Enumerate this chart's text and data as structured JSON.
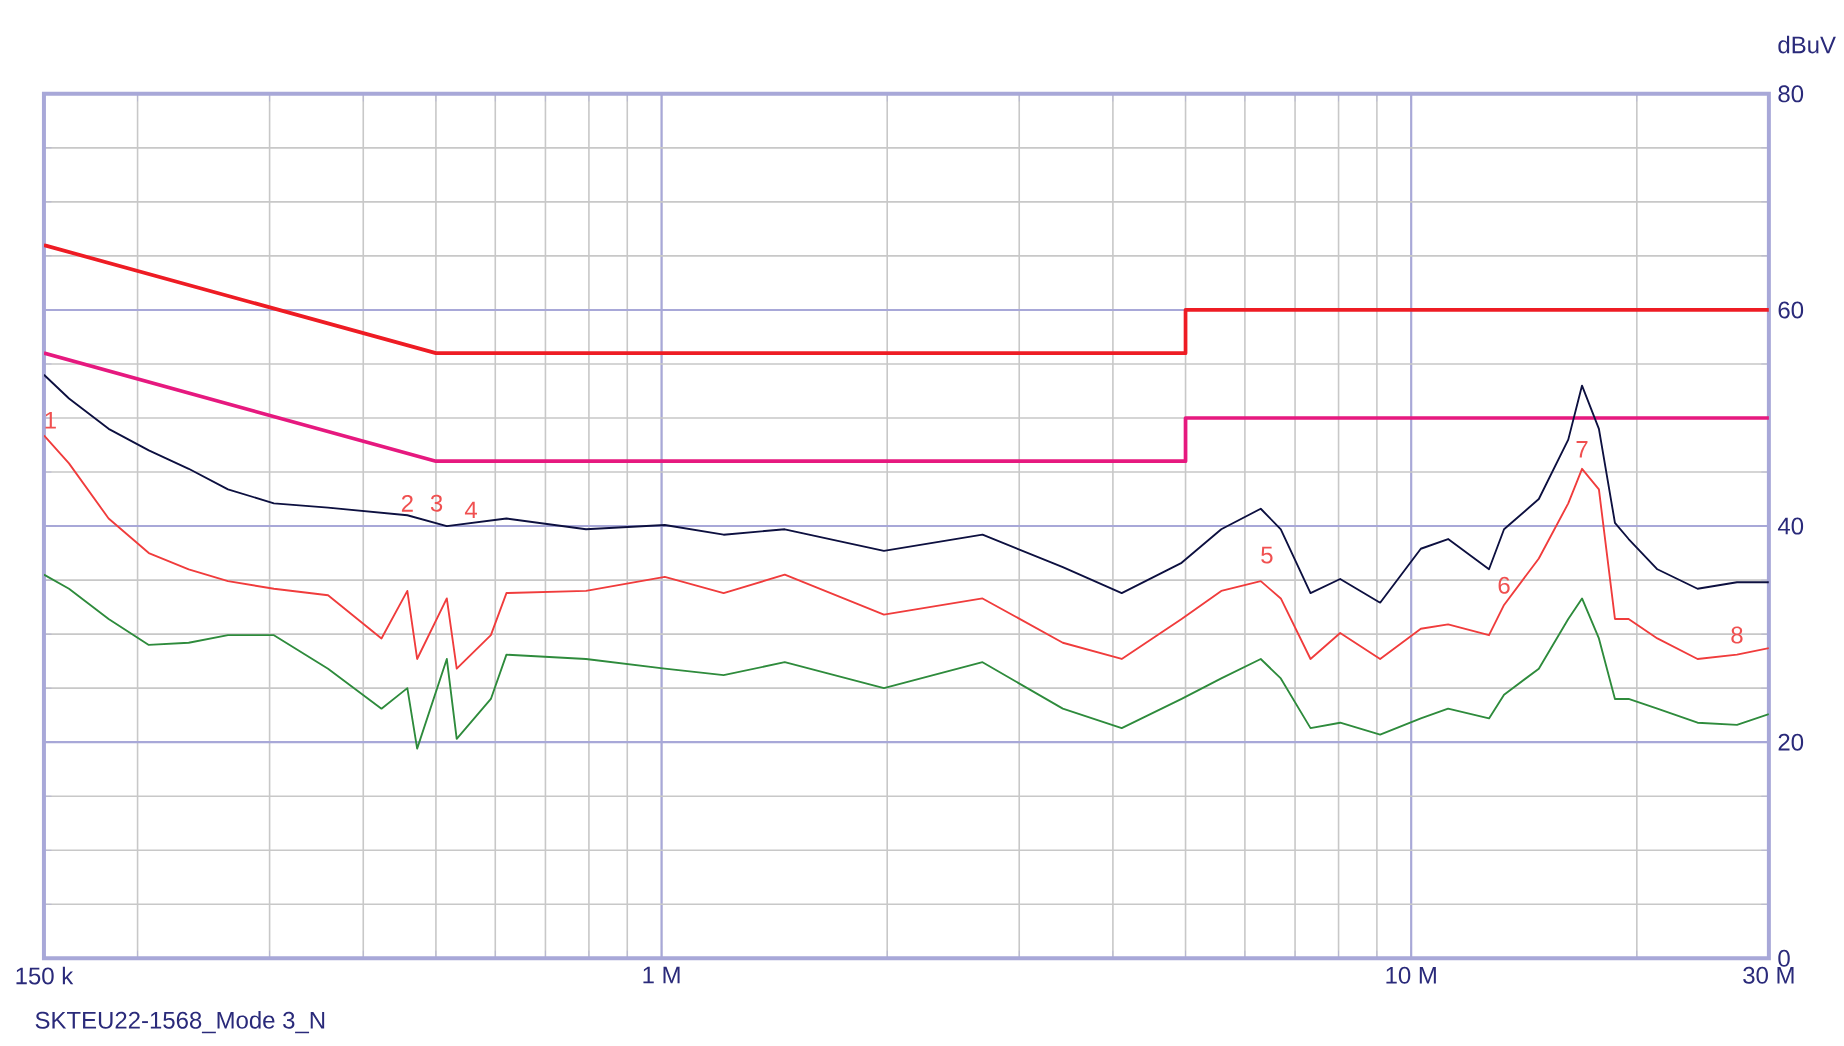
{
  "chart_data": {
    "type": "line",
    "ylabel": "dBuV",
    "log": "x",
    "grid": true,
    "xlim": [
      0.15,
      30
    ],
    "ylim": [
      0,
      80
    ],
    "xticks": [
      {
        "value": 0.15,
        "label": "150 k"
      },
      {
        "value": 1,
        "label": "1 M"
      },
      {
        "value": 10,
        "label": "10 M"
      },
      {
        "value": 30,
        "label": "30 M"
      }
    ],
    "yticks": [
      0,
      20,
      40,
      60,
      80
    ],
    "series": [
      {
        "color": "#ee1c24",
        "x": [
          0.15,
          0.5,
          5,
          5,
          30
        ],
        "values": [
          66,
          56,
          56,
          60,
          60
        ]
      },
      {
        "color": "#e6197f",
        "x": [
          0.15,
          0.5,
          5,
          5,
          30
        ],
        "values": [
          56,
          46,
          46,
          50,
          50
        ]
      },
      {
        "color": "#0d1040",
        "x": [
          0.15,
          0.162,
          0.183,
          0.207,
          0.234,
          0.264,
          0.304,
          0.359,
          0.458,
          0.517,
          0.621,
          0.793,
          1.01,
          1.21,
          1.46,
          1.98,
          2.68,
          3.43,
          4.11,
          4.94,
          5.58,
          6.3,
          6.7,
          7.34,
          8.04,
          9.09,
          10.3,
          11.2,
          12.7,
          13.3,
          14.8,
          16.2,
          16.9,
          17.8,
          18.7,
          19.5,
          21.3,
          24.1,
          27.2,
          30
        ],
        "values": [
          54,
          51.8,
          49,
          47,
          45.3,
          43.4,
          42.1,
          41.7,
          41,
          40,
          40.7,
          39.7,
          40.1,
          39.2,
          39.7,
          37.7,
          39.2,
          36.2,
          33.8,
          36.6,
          39.7,
          41.6,
          39.7,
          33.8,
          35.1,
          32.9,
          37.9,
          38.8,
          36,
          39.7,
          42.5,
          48,
          53,
          49,
          40.3,
          38.8,
          36,
          34.2,
          34.8,
          34.8
        ]
      },
      {
        "color": "#f03c3c",
        "x": [
          0.15,
          0.162,
          0.183,
          0.207,
          0.234,
          0.264,
          0.304,
          0.359,
          0.423,
          0.458,
          0.472,
          0.517,
          0.533,
          0.592,
          0.621,
          0.793,
          1.01,
          1.21,
          1.46,
          1.98,
          2.68,
          3.43,
          4.11,
          4.94,
          5.58,
          6.3,
          6.7,
          7.34,
          8.04,
          9.09,
          10.3,
          11.2,
          12.7,
          13.3,
          14.8,
          16.2,
          16.9,
          17.8,
          18.7,
          19.5,
          21.3,
          24.1,
          27.2,
          30
        ],
        "values": [
          48.4,
          45.8,
          40.7,
          37.5,
          36,
          34.9,
          34.2,
          33.6,
          29.6,
          34,
          27.7,
          33.3,
          26.8,
          29.9,
          33.8,
          34,
          35.3,
          33.8,
          35.5,
          31.8,
          33.3,
          29.2,
          27.7,
          31.4,
          34,
          34.9,
          33.3,
          27.7,
          30.1,
          27.7,
          30.5,
          30.9,
          29.9,
          32.7,
          37,
          42.1,
          45.3,
          43.4,
          31.4,
          31.4,
          29.6,
          27.7,
          28.1,
          28.7
        ]
      },
      {
        "color": "#2e8b3c",
        "x": [
          0.15,
          0.162,
          0.183,
          0.207,
          0.234,
          0.264,
          0.304,
          0.359,
          0.423,
          0.458,
          0.472,
          0.517,
          0.533,
          0.592,
          0.621,
          0.793,
          1.01,
          1.21,
          1.46,
          1.98,
          2.68,
          3.43,
          4.11,
          4.94,
          5.58,
          6.3,
          6.7,
          7.34,
          8.04,
          9.09,
          10.3,
          11.2,
          12.7,
          13.3,
          14.8,
          16.2,
          16.9,
          17.8,
          18.7,
          19.5,
          21.3,
          24.1,
          27.2,
          30
        ],
        "values": [
          35.5,
          34.2,
          31.4,
          29,
          29.2,
          29.9,
          29.9,
          26.8,
          23.1,
          25,
          19.4,
          27.7,
          20.3,
          24,
          28.1,
          27.7,
          26.8,
          26.2,
          27.4,
          25,
          27.4,
          23.1,
          21.3,
          24,
          25.9,
          27.7,
          25.9,
          21.3,
          21.8,
          20.7,
          22.2,
          23.1,
          22.2,
          24.4,
          26.8,
          31.4,
          33.3,
          29.6,
          24,
          24,
          23.1,
          21.8,
          21.6,
          22.6
        ]
      }
    ],
    "annotations": [
      {
        "text": "1",
        "x": 0.153,
        "y": 48
      },
      {
        "text": "2",
        "x": 0.458,
        "y": 40.3
      },
      {
        "text": "3",
        "x": 0.501,
        "y": 40.3
      },
      {
        "text": "4",
        "x": 0.557,
        "y": 39.7
      },
      {
        "text": "5",
        "x": 6.42,
        "y": 35.5
      },
      {
        "text": "6",
        "x": 13.3,
        "y": 32.7
      },
      {
        "text": "7",
        "x": 16.9,
        "y": 45.3
      },
      {
        "text": "8",
        "x": 27.2,
        "y": 28.1
      },
      "SKTEU22-1568_Mode 3_N"
    ]
  }
}
